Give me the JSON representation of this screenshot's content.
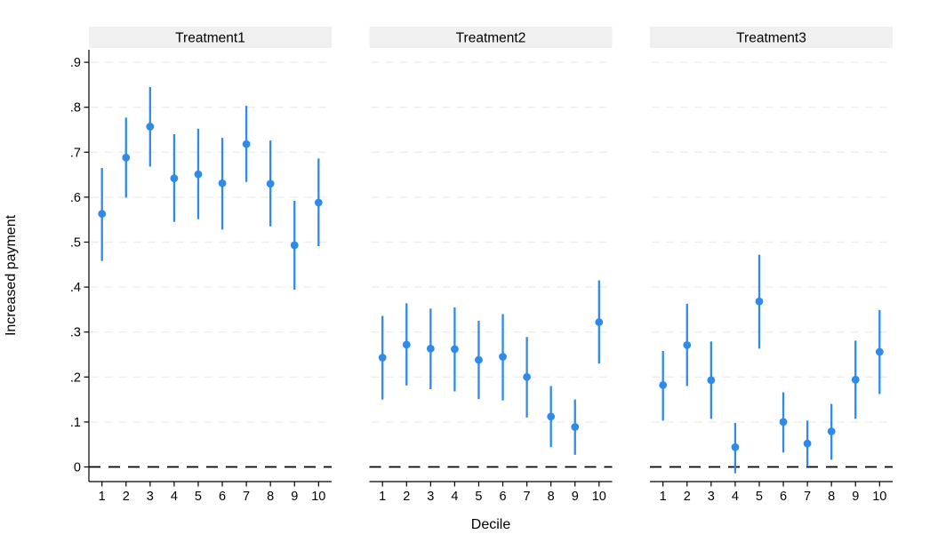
{
  "chart_data": {
    "type": "scatter",
    "kind": "coefficient-plot-with-ci",
    "xlabel": "Decile",
    "ylabel": "Increased payment",
    "x": [
      1,
      2,
      3,
      4,
      5,
      6,
      7,
      8,
      9,
      10
    ],
    "xticks": [
      "1",
      "2",
      "3",
      "4",
      "5",
      "6",
      "7",
      "8",
      "9",
      "10"
    ],
    "yticks": [
      {
        "label": ".9",
        "value": 0.9
      },
      {
        "label": ".8",
        "value": 0.8
      },
      {
        "label": ".7",
        "value": 0.7
      },
      {
        "label": ".6",
        "value": 0.6
      },
      {
        "label": ".5",
        "value": 0.5
      },
      {
        "label": ".4",
        "value": 0.4
      },
      {
        "label": ".3",
        "value": 0.3
      },
      {
        "label": ".2",
        "value": 0.2
      },
      {
        "label": ".1",
        "value": 0.1
      },
      {
        "label": "0",
        "value": 0
      }
    ],
    "ylim": [
      -0.033,
      0.928
    ],
    "grid": true,
    "zero_reference_line": 0,
    "legend": "none",
    "panels": [
      {
        "title": "Treatment1",
        "estimates": [
          0.563,
          0.688,
          0.757,
          0.642,
          0.651,
          0.631,
          0.718,
          0.63,
          0.493,
          0.588
        ],
        "ci_low": [
          0.458,
          0.599,
          0.668,
          0.545,
          0.551,
          0.528,
          0.634,
          0.535,
          0.394,
          0.491
        ],
        "ci_high": [
          0.665,
          0.777,
          0.845,
          0.74,
          0.752,
          0.732,
          0.803,
          0.726,
          0.592,
          0.686
        ]
      },
      {
        "title": "Treatment2",
        "estimates": [
          0.243,
          0.272,
          0.263,
          0.262,
          0.238,
          0.245,
          0.2,
          0.112,
          0.089,
          0.322
        ],
        "ci_low": [
          0.15,
          0.181,
          0.173,
          0.168,
          0.151,
          0.148,
          0.11,
          0.044,
          0.027,
          0.23
        ],
        "ci_high": [
          0.336,
          0.364,
          0.352,
          0.355,
          0.325,
          0.34,
          0.289,
          0.18,
          0.15,
          0.415
        ]
      },
      {
        "title": "Treatment3",
        "estimates": [
          0.182,
          0.271,
          0.193,
          0.044,
          0.368,
          0.1,
          0.052,
          0.079,
          0.194,
          0.256
        ],
        "ci_low": [
          0.103,
          0.18,
          0.107,
          -0.014,
          0.263,
          0.032,
          0.001,
          0.016,
          0.107,
          0.162
        ],
        "ci_high": [
          0.258,
          0.363,
          0.279,
          0.098,
          0.472,
          0.166,
          0.103,
          0.14,
          0.281,
          0.349
        ]
      }
    ],
    "colors": {
      "marker": "#2E8BEB",
      "ci_bar": "#2E8BEB",
      "gridline": "#EDEDED",
      "zero_line": "#000000",
      "axis_line": "#000000",
      "strip_bg": "#F0F0F0",
      "strip_text": "#000000",
      "tick_label": "#000000",
      "background": "#FFFFFF"
    }
  }
}
